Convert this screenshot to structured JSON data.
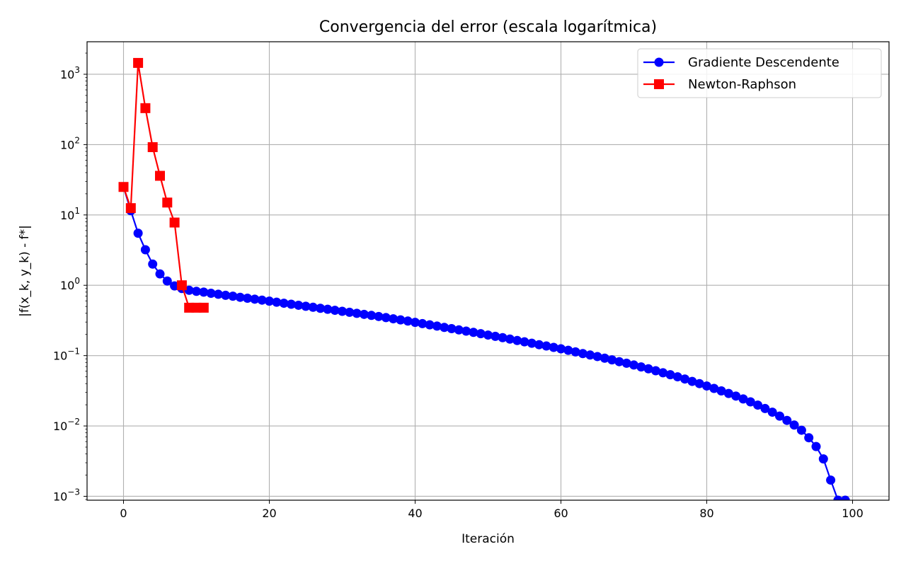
{
  "chart_data": {
    "type": "line",
    "title": "Convergencia del error (escala logarítmica)",
    "xlabel": "Iteración",
    "ylabel": "|f(x_k, y_k) - f*|",
    "xlim": [
      -5,
      105
    ],
    "ylim": [
      0.00088,
      2900
    ],
    "yscale": "log",
    "x_ticks": [
      0,
      20,
      40,
      60,
      80,
      100
    ],
    "y_ticks": [
      {
        "value": 0.001,
        "base": "10",
        "exp": "−3"
      },
      {
        "value": 0.01,
        "base": "10",
        "exp": "−2"
      },
      {
        "value": 0.1,
        "base": "10",
        "exp": "−1"
      },
      {
        "value": 1,
        "base": "10",
        "exp": "0"
      },
      {
        "value": 10,
        "base": "10",
        "exp": "1"
      },
      {
        "value": 100,
        "base": "10",
        "exp": "2"
      },
      {
        "value": 1000,
        "base": "10",
        "exp": "3"
      }
    ],
    "grid": true,
    "legend_position": "top-right",
    "series": [
      {
        "name": "Gradiente Descendente",
        "color": "#0000ff",
        "marker": "circle",
        "x": [
          0,
          1,
          2,
          3,
          4,
          5,
          6,
          7,
          8,
          9,
          10,
          11,
          12,
          13,
          14,
          15,
          16,
          17,
          18,
          19,
          20,
          21,
          22,
          23,
          24,
          25,
          26,
          27,
          28,
          29,
          30,
          31,
          32,
          33,
          34,
          35,
          36,
          37,
          38,
          39,
          40,
          41,
          42,
          43,
          44,
          45,
          46,
          47,
          48,
          49,
          50,
          51,
          52,
          53,
          54,
          55,
          56,
          57,
          58,
          59,
          60,
          61,
          62,
          63,
          64,
          65,
          66,
          67,
          68,
          69,
          70,
          71,
          72,
          73,
          74,
          75,
          76,
          77,
          78,
          79,
          80,
          81,
          82,
          83,
          84,
          85,
          86,
          87,
          88,
          89,
          90,
          91,
          92,
          93,
          94,
          95,
          96,
          97,
          98,
          99
        ],
        "y": [
          25,
          11.5,
          5.5,
          3.2,
          2.0,
          1.45,
          1.15,
          0.98,
          0.9,
          0.85,
          0.82,
          0.8,
          0.77,
          0.745,
          0.72,
          0.7,
          0.675,
          0.655,
          0.635,
          0.615,
          0.595,
          0.575,
          0.556,
          0.538,
          0.52,
          0.503,
          0.487,
          0.471,
          0.456,
          0.441,
          0.427,
          0.413,
          0.399,
          0.386,
          0.373,
          0.36,
          0.347,
          0.334,
          0.322,
          0.31,
          0.297,
          0.285,
          0.274,
          0.263,
          0.252,
          0.242,
          0.232,
          0.223,
          0.214,
          0.205,
          0.196,
          0.188,
          0.18,
          0.172,
          0.164,
          0.157,
          0.15,
          0.143,
          0.137,
          0.131,
          0.125,
          0.119,
          0.113,
          0.107,
          0.102,
          0.097,
          0.092,
          0.087,
          0.082,
          0.078,
          0.0735,
          0.069,
          0.065,
          0.061,
          0.057,
          0.0535,
          0.05,
          0.0465,
          0.043,
          0.04,
          0.037,
          0.0342,
          0.0315,
          0.029,
          0.0266,
          0.0242,
          0.022,
          0.0198,
          0.0177,
          0.0157,
          0.0138,
          0.012,
          0.0103,
          0.0087,
          0.0068,
          0.0051,
          0.0034,
          0.0017,
          0.00088,
          0.00088
        ]
      },
      {
        "name": "Newton-Raphson",
        "color": "#ff0000",
        "marker": "square",
        "x": [
          0,
          1,
          2,
          3,
          4,
          5,
          6,
          7,
          8,
          9,
          10,
          11
        ],
        "y": [
          25,
          12.5,
          1450,
          330,
          92,
          36,
          15,
          7.8,
          1.0,
          0.48,
          0.48,
          0.48
        ]
      }
    ]
  }
}
